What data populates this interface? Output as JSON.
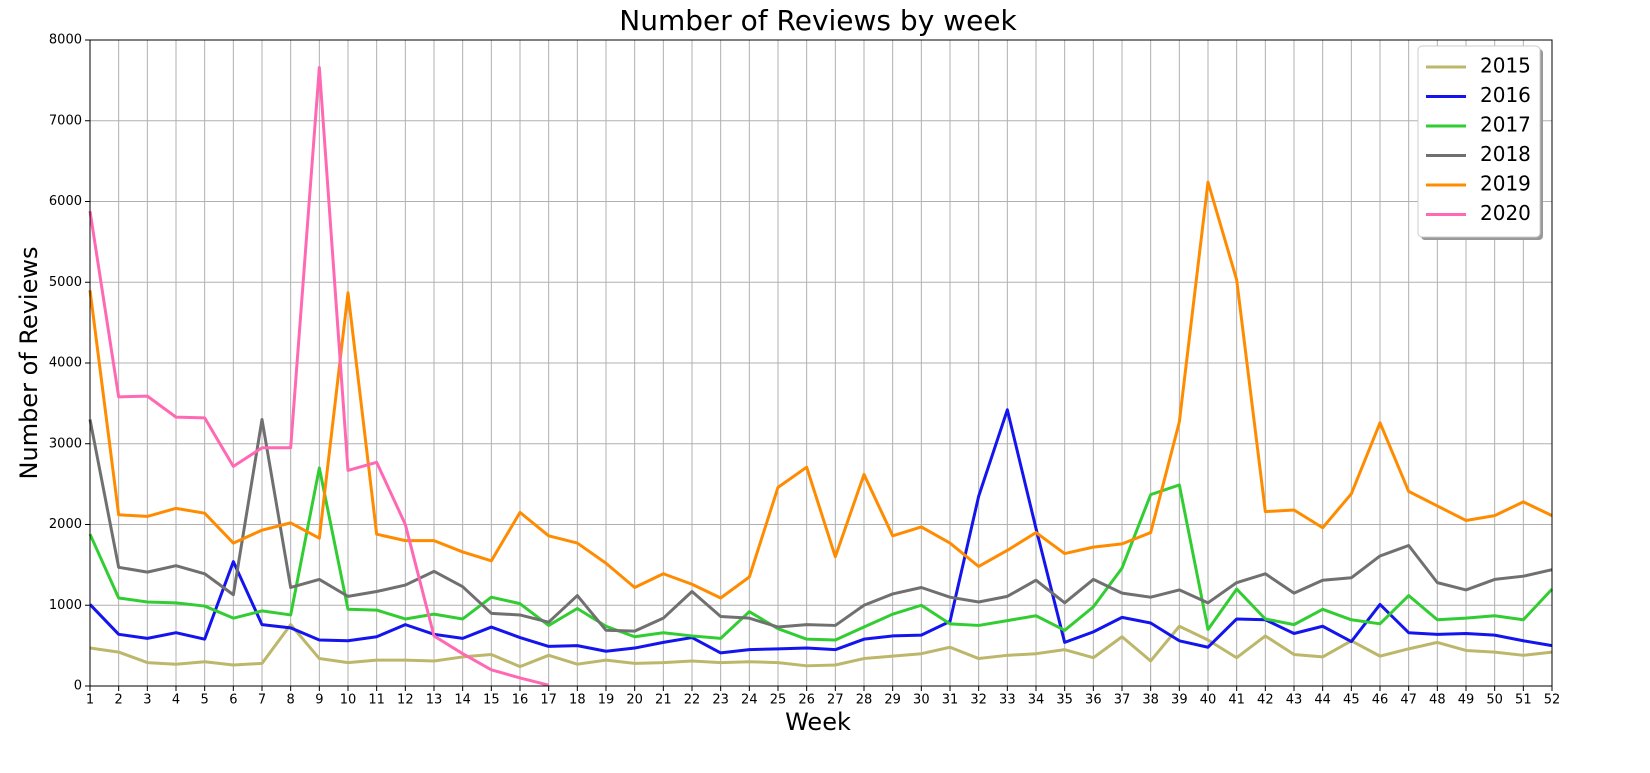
{
  "chart_data": {
    "type": "line",
    "title": "Number of Reviews by week",
    "xlabel": "Week",
    "ylabel": "Number of Reviews",
    "x": [
      1,
      2,
      3,
      4,
      5,
      6,
      7,
      8,
      9,
      10,
      11,
      12,
      13,
      14,
      15,
      16,
      17,
      18,
      19,
      20,
      21,
      22,
      23,
      24,
      25,
      26,
      27,
      28,
      29,
      30,
      31,
      32,
      33,
      34,
      35,
      36,
      37,
      38,
      39,
      40,
      41,
      42,
      43,
      44,
      45,
      46,
      47,
      48,
      49,
      50,
      51,
      52
    ],
    "xlim": [
      1,
      52
    ],
    "xticks": [
      1,
      2,
      3,
      4,
      5,
      6,
      7,
      8,
      9,
      10,
      11,
      12,
      13,
      14,
      15,
      16,
      17,
      18,
      19,
      20,
      21,
      22,
      23,
      24,
      25,
      26,
      27,
      28,
      29,
      30,
      31,
      32,
      33,
      34,
      35,
      36,
      37,
      38,
      39,
      40,
      41,
      42,
      43,
      44,
      45,
      46,
      47,
      48,
      49,
      50,
      51,
      52
    ],
    "ylim": [
      0,
      8000
    ],
    "yticks": [
      0,
      1000,
      2000,
      3000,
      4000,
      5000,
      6000,
      7000,
      8000
    ],
    "grid": true,
    "legend": "upper right",
    "series": [
      {
        "name": "2015",
        "color": "#bdb76b",
        "values": [
          470,
          420,
          290,
          270,
          300,
          260,
          280,
          760,
          340,
          290,
          320,
          320,
          310,
          360,
          390,
          240,
          380,
          270,
          320,
          280,
          290,
          310,
          290,
          300,
          290,
          250,
          260,
          340,
          370,
          400,
          480,
          340,
          380,
          400,
          450,
          350,
          610,
          310,
          740,
          570,
          350,
          620,
          390,
          360,
          560,
          370,
          460,
          540,
          440,
          420,
          380,
          420
        ]
      },
      {
        "name": "2016",
        "color": "#1414ee",
        "values": [
          1010,
          640,
          590,
          660,
          580,
          1540,
          760,
          720,
          570,
          560,
          610,
          760,
          640,
          590,
          730,
          600,
          490,
          500,
          430,
          470,
          540,
          600,
          410,
          450,
          460,
          470,
          450,
          580,
          620,
          630,
          800,
          2350,
          3420,
          1950,
          540,
          670,
          850,
          780,
          560,
          480,
          830,
          820,
          650,
          740,
          550,
          1010,
          660,
          640,
          650,
          630,
          560,
          500
        ]
      },
      {
        "name": "2017",
        "color": "#32cd32",
        "values": [
          1880,
          1090,
          1040,
          1030,
          990,
          840,
          930,
          880,
          2700,
          950,
          940,
          830,
          890,
          830,
          1100,
          1020,
          750,
          960,
          740,
          610,
          660,
          620,
          590,
          920,
          710,
          580,
          570,
          730,
          890,
          1000,
          770,
          750,
          810,
          870,
          690,
          980,
          1460,
          2370,
          2490,
          700,
          1200,
          830,
          760,
          950,
          820,
          770,
          1120,
          820,
          840,
          870,
          820,
          1200
        ]
      },
      {
        "name": "2018",
        "color": "#707070",
        "values": [
          3300,
          1470,
          1410,
          1490,
          1390,
          1130,
          3300,
          1220,
          1320,
          1110,
          1170,
          1250,
          1420,
          1230,
          900,
          880,
          790,
          1120,
          690,
          680,
          840,
          1170,
          860,
          840,
          730,
          760,
          750,
          1000,
          1140,
          1220,
          1100,
          1040,
          1110,
          1310,
          1030,
          1320,
          1150,
          1100,
          1190,
          1030,
          1280,
          1390,
          1150,
          1310,
          1340,
          1610,
          1740,
          1280,
          1190,
          1320,
          1360,
          1440
        ]
      },
      {
        "name": "2019",
        "color": "#ff8c00",
        "values": [
          4900,
          2120,
          2100,
          2200,
          2140,
          1770,
          1930,
          2020,
          1830,
          4870,
          1880,
          1800,
          1800,
          1660,
          1550,
          2150,
          1860,
          1770,
          1520,
          1220,
          1390,
          1260,
          1090,
          1350,
          2460,
          2710,
          1600,
          2620,
          1860,
          1970,
          1770,
          1480,
          1680,
          1900,
          1640,
          1720,
          1760,
          1900,
          3270,
          6240,
          5030,
          2160,
          2180,
          1960,
          2380,
          3260,
          2410,
          2230,
          2050,
          2110,
          2280,
          2110
        ]
      },
      {
        "name": "2020",
        "color": "#ff69b4",
        "values": [
          5880,
          3580,
          3590,
          3330,
          3320,
          2720,
          2950,
          2950,
          7660,
          2670,
          2770,
          2000,
          620,
          400,
          200,
          100,
          10,
          null,
          null,
          null,
          null,
          null,
          null,
          null,
          null,
          null,
          null,
          null,
          null,
          null,
          null,
          null,
          null,
          null,
          null,
          null,
          null,
          null,
          null,
          null,
          null,
          null,
          null,
          null,
          null,
          null,
          null,
          null,
          null,
          null,
          null,
          null
        ]
      }
    ]
  }
}
